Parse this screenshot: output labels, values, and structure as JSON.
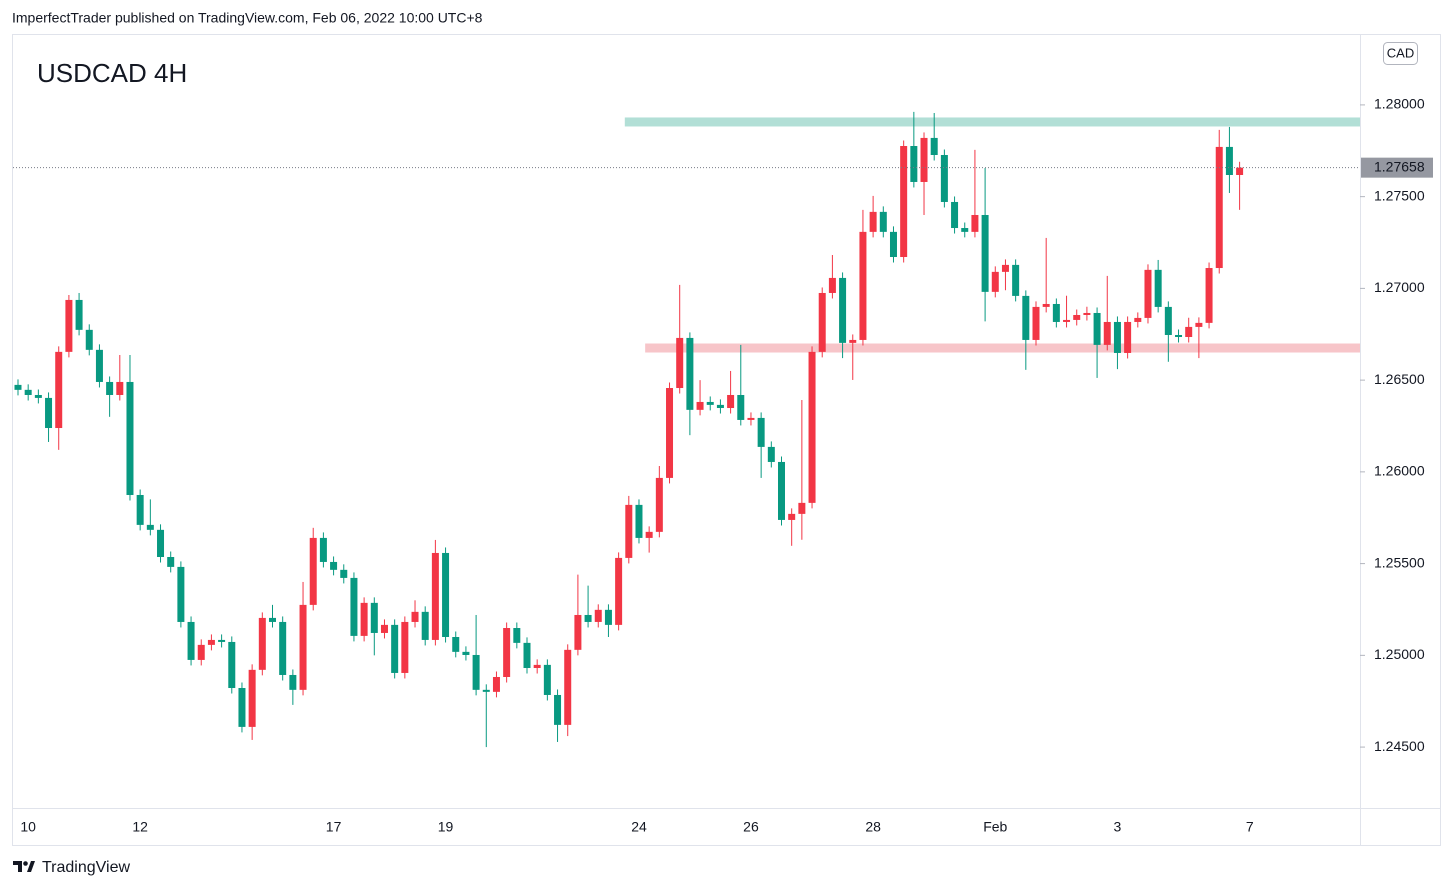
{
  "chart_data": {
    "type": "candlestick",
    "header": "ImperfectTrader published on TradingView.com, Feb 06, 2022 10:00 UTC+8",
    "title": "USDCAD 4H",
    "currency": "CAD",
    "brand": "TradingView",
    "up_color": "#f23645",
    "down_color": "#089981",
    "categories": [
      null,
      "10",
      null,
      null,
      null,
      null,
      null,
      null,
      null,
      null,
      null,
      null,
      "12",
      null,
      null,
      null,
      null,
      null,
      null,
      null,
      null,
      null,
      null,
      null,
      null,
      null,
      null,
      null,
      null,
      null,
      null,
      "17",
      null,
      null,
      null,
      null,
      null,
      null,
      null,
      null,
      null,
      null,
      "19",
      null,
      null,
      null,
      null,
      null,
      null,
      null,
      null,
      null,
      null,
      null,
      null,
      null,
      null,
      null,
      null,
      null,
      null,
      "24",
      null,
      null,
      null,
      null,
      null,
      null,
      null,
      null,
      null,
      null,
      "26",
      null,
      null,
      null,
      null,
      null,
      null,
      null,
      null,
      null,
      null,
      null,
      "28",
      null,
      null,
      null,
      null,
      null,
      null,
      null,
      null,
      null,
      null,
      null,
      "Feb",
      null,
      null,
      null,
      null,
      null,
      null,
      null,
      null,
      null,
      null,
      null,
      "3",
      null,
      null,
      null,
      null,
      null,
      null,
      null,
      null,
      null,
      null,
      null,
      null,
      "7"
    ],
    "open": [
      1.26474,
      1.26447,
      1.26419,
      1.26403,
      1.26239,
      1.26654,
      1.26937,
      1.26774,
      1.26665,
      1.2649,
      1.26419,
      1.2649,
      1.25874,
      1.25711,
      1.25684,
      1.25536,
      1.25482,
      1.25182,
      1.24975,
      1.25057,
      1.25084,
      1.25073,
      1.24822,
      1.2461,
      1.24921,
      1.25204,
      1.25182,
      1.24893,
      1.24812,
      1.25275,
      1.2564,
      1.25509,
      1.25466,
      1.25422,
      1.25106,
      1.25286,
      1.25122,
      1.25166,
      1.24904,
      1.25182,
      1.25237,
      1.25084,
      1.25558,
      1.251,
      1.25019,
      1.25002,
      1.24812,
      1.24801,
      1.24882,
      1.25149,
      1.25068,
      1.24931,
      1.24948,
      1.24784,
      1.24621,
      1.2503,
      1.2522,
      1.25182,
      1.25248,
      1.25166,
      1.25531,
      1.2582,
      1.2564,
      1.25673,
      1.25967,
      1.26457,
      1.2673,
      1.26338,
      1.26381,
      1.26365,
      1.26348,
      1.26419,
      1.26283,
      1.26294,
      1.26136,
      1.26054,
      1.25738,
      1.25771,
      1.25831,
      1.26654,
      1.26975,
      1.27057,
      1.26703,
      1.26719,
      1.27308,
      1.27417,
      1.27308,
      1.27171,
      1.27776,
      1.2758,
      1.2782,
      1.27727,
      1.27471,
      1.27329,
      1.27308,
      1.274,
      1.26981,
      1.2709,
      1.27128,
      1.26959,
      1.26719,
      1.26899,
      1.26915,
      1.26817,
      1.26828,
      1.26855,
      1.26866,
      1.26692,
      1.26817,
      1.26648,
      1.26817,
      1.26839,
      1.27101,
      1.26899,
      1.26746,
      1.26735,
      1.2679,
      1.26812,
      1.27111,
      1.27771,
      1.27618,
      null
    ],
    "high": [
      1.26504,
      1.26477,
      1.26449,
      1.26433,
      1.26684,
      1.26964,
      1.26975,
      1.26804,
      1.26695,
      1.2652,
      1.26637,
      1.26637,
      1.25904,
      1.2585,
      1.25714,
      1.25566,
      1.25512,
      1.25212,
      1.25087,
      1.25114,
      1.25114,
      1.25103,
      1.24852,
      1.24951,
      1.25234,
      1.25275,
      1.25212,
      1.24923,
      1.254,
      1.25695,
      1.2567,
      1.25539,
      1.25496,
      1.25452,
      1.25316,
      1.25316,
      1.25196,
      1.25196,
      1.25212,
      1.253,
      1.25267,
      1.25629,
      1.25588,
      1.2513,
      1.25049,
      1.2522,
      1.24842,
      1.24912,
      1.25179,
      1.25179,
      1.25098,
      1.24978,
      1.24978,
      1.24814,
      1.2506,
      1.2544,
      1.2538,
      1.25278,
      1.25278,
      1.25561,
      1.25869,
      1.2585,
      1.25703,
      1.26032,
      1.26487,
      1.27019,
      1.2676,
      1.265,
      1.26411,
      1.26395,
      1.2655,
      1.26692,
      1.26324,
      1.26324,
      1.26166,
      1.26084,
      1.25801,
      1.26392,
      1.26684,
      1.27005,
      1.27182,
      1.27087,
      1.26749,
      1.27428,
      1.27504,
      1.27447,
      1.27338,
      1.27806,
      1.27962,
      1.2785,
      1.27956,
      1.27757,
      1.27501,
      1.27359,
      1.27755,
      1.27656,
      1.2712,
      1.27158,
      1.27158,
      1.26989,
      1.26929,
      1.27275,
      1.26945,
      1.2696,
      1.26885,
      1.269,
      1.26896,
      1.27068,
      1.26847,
      1.26847,
      1.26869,
      1.27131,
      1.27155,
      1.26929,
      1.26776,
      1.2684,
      1.26842,
      1.27141,
      1.27864,
      1.2788,
      1.2769,
      null
    ],
    "low": [
      1.26417,
      1.26389,
      1.26373,
      1.26163,
      1.2612,
      1.26624,
      1.26744,
      1.26635,
      1.2646,
      1.263,
      1.26389,
      1.25844,
      1.25681,
      1.25654,
      1.25506,
      1.25452,
      1.25152,
      1.24945,
      1.24945,
      1.25027,
      1.25043,
      1.24792,
      1.2458,
      1.24539,
      1.24891,
      1.25152,
      1.24863,
      1.2473,
      1.24782,
      1.25245,
      1.25479,
      1.25436,
      1.25392,
      1.25076,
      1.25076,
      1.25,
      1.25092,
      1.24874,
      1.24874,
      1.25152,
      1.25054,
      1.25054,
      1.2507,
      1.24989,
      1.24972,
      1.24782,
      1.245,
      1.24771,
      1.24852,
      1.25038,
      1.24901,
      1.24901,
      1.24754,
      1.24528,
      1.2456,
      1.25,
      1.25152,
      1.25152,
      1.251,
      1.25136,
      1.25501,
      1.2561,
      1.2556,
      1.25643,
      1.25937,
      1.26427,
      1.262,
      1.26308,
      1.26335,
      1.26318,
      1.26318,
      1.26253,
      1.26253,
      1.25967,
      1.26024,
      1.25708,
      1.25597,
      1.2563,
      1.25801,
      1.26624,
      1.26945,
      1.2662,
      1.26501,
      1.26689,
      1.27278,
      1.27278,
      1.27141,
      1.27141,
      1.2755,
      1.274,
      1.27697,
      1.27441,
      1.27299,
      1.27278,
      1.27278,
      1.2682,
      1.26951,
      1.2699,
      1.26929,
      1.26556,
      1.26689,
      1.26869,
      1.26787,
      1.26787,
      1.26798,
      1.26825,
      1.26512,
      1.26662,
      1.2656,
      1.26618,
      1.26787,
      1.26809,
      1.26869,
      1.266,
      1.26705,
      1.26705,
      1.2662,
      1.26782,
      1.27081,
      1.2752,
      1.27428,
      null
    ],
    "close": [
      1.26447,
      1.26419,
      1.26403,
      1.26239,
      1.26654,
      1.26937,
      1.26774,
      1.26665,
      1.2649,
      1.26419,
      1.2649,
      1.25874,
      1.25711,
      1.25684,
      1.25536,
      1.25482,
      1.25182,
      1.24975,
      1.25057,
      1.25084,
      1.25073,
      1.24822,
      1.2461,
      1.24921,
      1.25204,
      1.25182,
      1.24893,
      1.24812,
      1.25275,
      1.2564,
      1.25509,
      1.25466,
      1.25422,
      1.25106,
      1.25286,
      1.25122,
      1.25166,
      1.24904,
      1.25182,
      1.25237,
      1.25084,
      1.25558,
      1.251,
      1.25019,
      1.25002,
      1.24812,
      1.24801,
      1.24882,
      1.25149,
      1.25068,
      1.24931,
      1.24948,
      1.24784,
      1.24621,
      1.2503,
      1.2522,
      1.25182,
      1.25248,
      1.25166,
      1.25531,
      1.2582,
      1.2564,
      1.25673,
      1.25967,
      1.26457,
      1.2673,
      1.26338,
      1.26381,
      1.26365,
      1.26348,
      1.26419,
      1.26283,
      1.26294,
      1.26136,
      1.26054,
      1.25738,
      1.25771,
      1.25831,
      1.26654,
      1.26975,
      1.27057,
      1.26703,
      1.26719,
      1.27308,
      1.27417,
      1.27308,
      1.27171,
      1.27776,
      1.2758,
      1.2782,
      1.27727,
      1.27471,
      1.27329,
      1.27308,
      1.274,
      1.26981,
      1.2709,
      1.27128,
      1.26959,
      1.26719,
      1.26899,
      1.26915,
      1.26817,
      1.26828,
      1.26855,
      1.26866,
      1.26692,
      1.26817,
      1.26648,
      1.26817,
      1.26839,
      1.27101,
      1.26899,
      1.26746,
      1.26735,
      1.2679,
      1.26812,
      1.27111,
      1.27771,
      1.27618,
      1.27658,
      null
    ],
    "ylim": [
      1.24168,
      1.28381
    ],
    "yticks": [
      {
        "value": 1.245,
        "label": "1.24500"
      },
      {
        "value": 1.25,
        "label": "1.25000"
      },
      {
        "value": 1.255,
        "label": "1.25500"
      },
      {
        "value": 1.26,
        "label": "1.26000"
      },
      {
        "value": 1.265,
        "label": "1.26500"
      },
      {
        "value": 1.27,
        "label": "1.27000"
      },
      {
        "value": 1.275,
        "label": "1.27500"
      },
      {
        "value": 1.28,
        "label": "1.28000"
      }
    ],
    "zones": [
      {
        "value": 1.27907,
        "start": 60,
        "color": "#b2dfd6"
      },
      {
        "value": 1.26675,
        "start": 62,
        "color": "#f7c5c9"
      }
    ]
  }
}
